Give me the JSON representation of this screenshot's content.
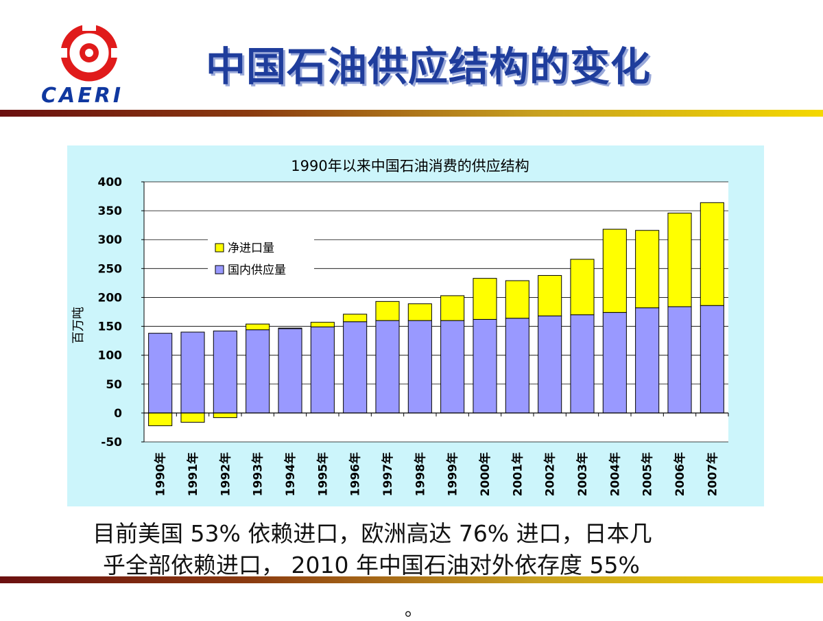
{
  "logo": {
    "text": "CAERI",
    "colors": {
      "red": "#e01b1b",
      "blue": "#1038a0"
    }
  },
  "slide": {
    "title": "中国石油供应结构的变化",
    "text_line1": "目前美国 53% 依赖进口，欧洲高达 76% 进口，日本几",
    "text_line2": "乎全部依赖进口， 2010 年中国石油对外依存度 55%",
    "tail": "。"
  },
  "chart_data": {
    "type": "bar",
    "stacked": true,
    "title": "1990年以来中国石油消费的供应结构",
    "ylabel": "百万吨",
    "xlabel": "",
    "ylim": [
      -50,
      400
    ],
    "yticks": [
      400,
      350,
      300,
      250,
      200,
      150,
      100,
      50,
      0,
      -50
    ],
    "grid": true,
    "legend_position": "upper-left",
    "categories": [
      "1990年",
      "1991年",
      "1992年",
      "1993年",
      "1994年",
      "1995年",
      "1996年",
      "1997年",
      "1998年",
      "1999年",
      "2000年",
      "2001年",
      "2002年",
      "2003年",
      "2004年",
      "2005年",
      "2006年",
      "2007年"
    ],
    "series": [
      {
        "name": "国内供应量",
        "color": "#9999ff",
        "values": [
          138,
          140,
          142,
          144,
          146,
          149,
          158,
          160,
          160,
          160,
          162,
          164,
          168,
          170,
          174,
          182,
          184,
          186
        ]
      },
      {
        "name": "净进口量",
        "color": "#ffff00",
        "values": [
          -22,
          -16,
          -8,
          10,
          1,
          8,
          13,
          33,
          29,
          43,
          71,
          65,
          70,
          96,
          144,
          134,
          162,
          178
        ]
      }
    ]
  }
}
